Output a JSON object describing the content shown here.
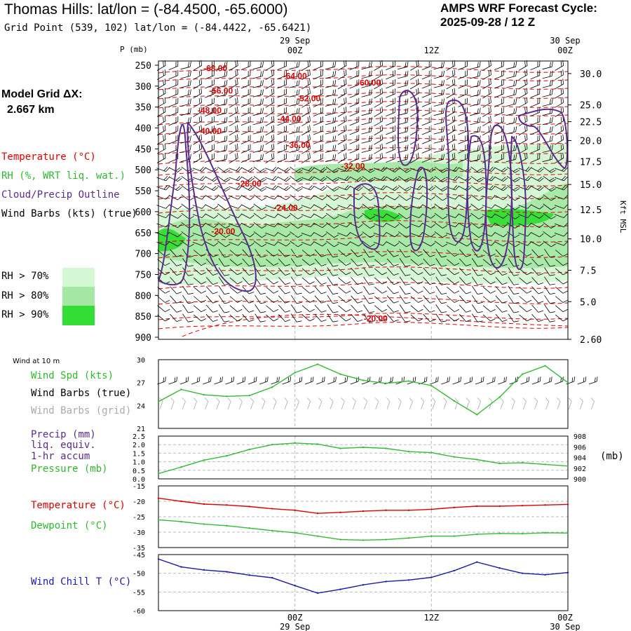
{
  "header": {
    "title": "Thomas Hills:  lat/lon = (-84.4500, -65.6000)",
    "subtitle": "Grid Point (539, 102) lat/lon = (-84.4422, -65.6421)",
    "cycle_line1": "AMPS WRF Forecast Cycle:",
    "cycle_line2": "2025-09-28 / 12  Z",
    "model_grid_label": "Model Grid ΔX:",
    "model_grid_value": "2.667 km"
  },
  "colors": {
    "temperature": "#dd0000",
    "rh": "#2eb82e",
    "cloud_outline": "#5b2a8c",
    "wind_barbs": "#000000",
    "wind_barbs_grid": "#a8a8a8",
    "rh70": "#d4f7d4",
    "rh80": "#a5e8a5",
    "rh90": "#33dd33",
    "pressure_line": "#33bb33",
    "windchill": "#1a1aaa",
    "dewpoint": "#33bb33"
  },
  "legend": {
    "temperature": "Temperature (°C)",
    "rh": "RH (%, WRT liq. wat.)",
    "cloud": "Cloud/Precip Outline",
    "wind_barbs": "Wind Barbs (kts) (true)",
    "rh70": "RH > 70%",
    "rh80": "RH > 80%",
    "rh90": "RH > 90%"
  },
  "panel_legends": {
    "wind_header": "Wind at 10 m",
    "wind_spd": "Wind Spd (kts)",
    "wind_barbs_true": "Wind Barbs (true)",
    "wind_barbs_grid": "Wind Barbs (grid)",
    "precip": "Precip (mm)",
    "precip_line2": "liq. equiv.",
    "precip_line3": "1-hr accum",
    "pressure": "Pressure (mb)",
    "pressure_unit": "(mb)",
    "temperature": "Temperature (°C)",
    "dewpoint": "Dewpoint (°C)",
    "windchill": "Wind Chill T (°C)"
  },
  "time_axis": {
    "top_dates": [
      "29 Sep",
      "30 Sep"
    ],
    "ticks": [
      "00Z",
      "12Z",
      "00Z"
    ],
    "bottom_dates": [
      "29 Sep",
      "30 Sep"
    ]
  },
  "chart_data": [
    {
      "type": "heatmap",
      "name": "cross-section",
      "xlabel": "",
      "ylabel": "P (mb)",
      "y2label": "Kft MSL",
      "pressure_ticks": [
        250,
        300,
        350,
        400,
        450,
        500,
        550,
        600,
        650,
        700,
        750,
        800,
        850,
        900
      ],
      "height_ticks": [
        {
          "label": "30.0",
          "p": 270
        },
        {
          "label": "25.0",
          "p": 345
        },
        {
          "label": "22.5",
          "p": 385
        },
        {
          "label": "20.0",
          "p": 430
        },
        {
          "label": "17.5",
          "p": 480
        },
        {
          "label": "15.0",
          "p": 535
        },
        {
          "label": "12.5",
          "p": 595
        },
        {
          "label": "10.0",
          "p": 665
        },
        {
          "label": "7.5",
          "p": 740
        },
        {
          "label": "5.0",
          "p": 815
        },
        {
          "label": "2.60",
          "p": 905
        }
      ],
      "temperature_labels": [
        {
          "text": "-68.00",
          "h": 5,
          "p": 264
        },
        {
          "text": "-64.00",
          "h": 12,
          "p": 283
        },
        {
          "text": "-60.00",
          "h": 18.5,
          "p": 299
        },
        {
          "text": "-56.00",
          "h": 5.5,
          "p": 318
        },
        {
          "text": "-52.00",
          "h": 13.2,
          "p": 336
        },
        {
          "text": "-48.00",
          "h": 4.5,
          "p": 365
        },
        {
          "text": "-44.00",
          "h": 11.5,
          "p": 385
        },
        {
          "text": "-40.00",
          "h": 4.5,
          "p": 414
        },
        {
          "text": "-36.00",
          "h": 12.3,
          "p": 448
        },
        {
          "text": "-32.00",
          "h": 17.1,
          "p": 498
        },
        {
          "text": "-28.00",
          "h": 8,
          "p": 540
        },
        {
          "text": "-24.00",
          "h": 11.2,
          "p": 598
        },
        {
          "text": "-20.00",
          "h": 5.7,
          "p": 654
        },
        {
          "text": "-20.00",
          "h": 19.1,
          "p": 862
        }
      ]
    },
    {
      "type": "line",
      "name": "wind-at-10m",
      "ylim": [
        21,
        30
      ],
      "yticks": [
        30,
        27,
        24,
        21
      ],
      "x": [
        0,
        2,
        4,
        6,
        8,
        10,
        12,
        14,
        16,
        18,
        20,
        22,
        24,
        26,
        28,
        30,
        32,
        34,
        36
      ],
      "series": [
        {
          "name": "Wind Spd (kts)",
          "values": [
            24.5,
            26.1,
            25.4,
            25.2,
            25.3,
            26.4,
            28.3,
            29.4,
            28.1,
            27.3,
            26.9,
            27.2,
            26.6,
            24.6,
            22.8,
            25.1,
            28.1,
            29.2,
            27.0
          ]
        }
      ]
    },
    {
      "type": "line",
      "name": "precip-pressure",
      "ylim": [
        0.0,
        2.5
      ],
      "yticks": [
        "2.5",
        "2.0",
        "1.5",
        "1.0",
        "0.5",
        "0.0"
      ],
      "y2lim": [
        900,
        908
      ],
      "y2ticks": [
        908,
        906,
        904,
        902,
        900
      ],
      "x": [
        0,
        2,
        4,
        6,
        8,
        10,
        12,
        14,
        16,
        18,
        20,
        22,
        24,
        26,
        28,
        30,
        32,
        34,
        36
      ],
      "series": [
        {
          "name": "Pressure (mb)",
          "axis": "right",
          "values": [
            901.0,
            902.2,
            903.5,
            904.3,
            905.5,
            906.4,
            906.7,
            906.5,
            905.7,
            905.9,
            905.7,
            905.1,
            904.9,
            904.1,
            903.6,
            902.9,
            903.0,
            902.7,
            902.4
          ]
        },
        {
          "name": "Precip (mm)",
          "values": [
            0,
            0,
            0,
            0,
            0,
            0,
            0,
            0,
            0,
            0,
            0,
            0,
            0,
            0,
            0,
            0,
            0,
            0,
            0
          ]
        }
      ]
    },
    {
      "type": "line",
      "name": "temperature-dewpoint",
      "ylim": [
        -35,
        -15
      ],
      "yticks": [
        -15,
        -20,
        -25,
        -30,
        -35
      ],
      "x": [
        0,
        2,
        4,
        6,
        8,
        10,
        12,
        14,
        16,
        18,
        20,
        22,
        24,
        26,
        28,
        30,
        32,
        34,
        36
      ],
      "series": [
        {
          "name": "Temperature (°C)",
          "values": [
            -19.0,
            -20.0,
            -20.9,
            -21.2,
            -21.7,
            -22.4,
            -22.9,
            -23.9,
            -23.6,
            -23.2,
            -22.9,
            -22.9,
            -22.6,
            -22.0,
            -21.6,
            -21.6,
            -21.4,
            -21.2,
            -21.0
          ]
        },
        {
          "name": "Dewpoint (°C)",
          "values": [
            -26.0,
            -26.6,
            -27.4,
            -27.9,
            -28.7,
            -29.5,
            -30.2,
            -31.3,
            -32.4,
            -32.6,
            -32.4,
            -31.9,
            -31.3,
            -31.3,
            -30.7,
            -30.4,
            -30.5,
            -30.2,
            -30.3
          ]
        }
      ]
    },
    {
      "type": "line",
      "name": "wind-chill",
      "ylim": [
        -60,
        -45
      ],
      "yticks": [
        -45,
        -50,
        -55,
        -60
      ],
      "x": [
        0,
        2,
        4,
        6,
        8,
        10,
        12,
        14,
        16,
        18,
        20,
        22,
        24,
        26,
        28,
        30,
        32,
        34,
        36
      ],
      "series": [
        {
          "name": "Wind Chill T (°C)",
          "values": [
            -46.2,
            -48.3,
            -49.1,
            -49.6,
            -50.5,
            -51.2,
            -53.3,
            -55.3,
            -54.3,
            -53.1,
            -52.2,
            -51.8,
            -51.1,
            -49.3,
            -47.0,
            -48.6,
            -50.0,
            -50.4,
            -49.8
          ]
        }
      ]
    }
  ]
}
